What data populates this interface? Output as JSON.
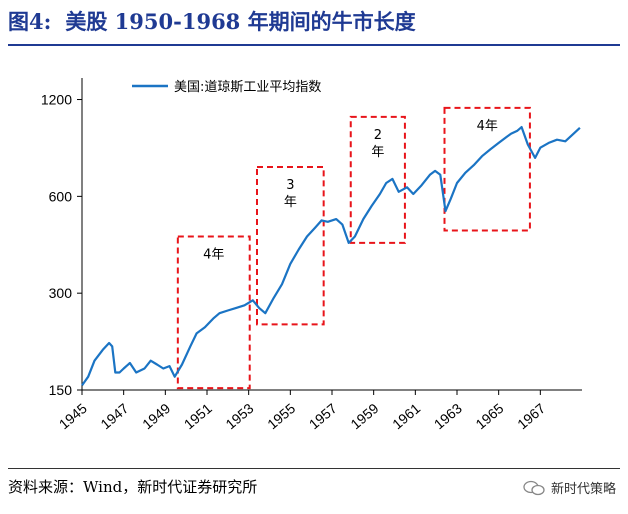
{
  "header": {
    "figure_label": "图4:",
    "title": "美股 1950-1968 年期间的牛市长度"
  },
  "footer": {
    "source": "资料来源：Wind，新时代证券研究所",
    "brand": "新时代策略"
  },
  "colors": {
    "title": "#1f3a93",
    "series": "#1b74c4",
    "box": "#e8141a"
  },
  "chart_data": {
    "type": "line",
    "title": "",
    "xlabel": "",
    "ylabel": "",
    "y_scale": "log",
    "ylim": [
      150,
      1400
    ],
    "xlim": [
      1945,
      1969
    ],
    "y_ticks": [
      150,
      300,
      600,
      1200
    ],
    "x_ticks": [
      1945,
      1947,
      1949,
      1951,
      1953,
      1955,
      1957,
      1959,
      1961,
      1963,
      1965,
      1967
    ],
    "grid": false,
    "legend_position": "top-left",
    "series": [
      {
        "name": "美国:道琼斯工业平均指数",
        "x": [
          1945.0,
          1945.3,
          1945.6,
          1946.0,
          1946.3,
          1946.45,
          1946.6,
          1946.8,
          1947.0,
          1947.3,
          1947.6,
          1948.0,
          1948.3,
          1948.6,
          1948.9,
          1949.2,
          1949.45,
          1949.8,
          1950.2,
          1950.5,
          1950.9,
          1951.3,
          1951.6,
          1952.0,
          1952.4,
          1952.8,
          1953.2,
          1953.5,
          1953.8,
          1954.2,
          1954.6,
          1955.0,
          1955.4,
          1955.8,
          1956.2,
          1956.5,
          1956.8,
          1957.2,
          1957.5,
          1957.8,
          1958.1,
          1958.5,
          1958.9,
          1959.3,
          1959.6,
          1959.9,
          1960.2,
          1960.6,
          1960.9,
          1961.3,
          1961.7,
          1961.95,
          1962.2,
          1962.45,
          1962.7,
          1963.0,
          1963.4,
          1963.8,
          1964.2,
          1964.6,
          1965.0,
          1965.4,
          1965.6,
          1965.9,
          1966.1,
          1966.4,
          1966.75,
          1967.0,
          1967.4,
          1967.8,
          1968.2,
          1968.6,
          1968.9
        ],
        "y": [
          155,
          165,
          185,
          200,
          210,
          205,
          170,
          170,
          175,
          182,
          170,
          175,
          185,
          180,
          175,
          178,
          165,
          180,
          205,
          225,
          235,
          250,
          260,
          265,
          270,
          275,
          285,
          270,
          260,
          290,
          320,
          370,
          410,
          450,
          480,
          505,
          500,
          510,
          490,
          430,
          450,
          510,
          560,
          610,
          660,
          680,
          620,
          640,
          610,
          650,
          700,
          720,
          700,
          540,
          590,
          660,
          710,
          750,
          800,
          840,
          880,
          920,
          940,
          960,
          985,
          870,
          790,
          850,
          880,
          900,
          890,
          940,
          980
        ]
      }
    ],
    "annotations": [
      {
        "label": "4年",
        "x_start": 1949.6,
        "x_end": 1953.05,
        "y_top": 450,
        "y_bottom": 152
      },
      {
        "label": "3\n年",
        "x_start": 1953.4,
        "x_end": 1956.6,
        "y_top": 740,
        "y_bottom": 240
      },
      {
        "label": "2\n年",
        "x_start": 1957.9,
        "x_end": 1960.5,
        "y_top": 1060,
        "y_bottom": 430
      },
      {
        "label": "4年",
        "x_start": 1962.4,
        "x_end": 1966.5,
        "y_top": 1130,
        "y_bottom": 470
      }
    ]
  }
}
